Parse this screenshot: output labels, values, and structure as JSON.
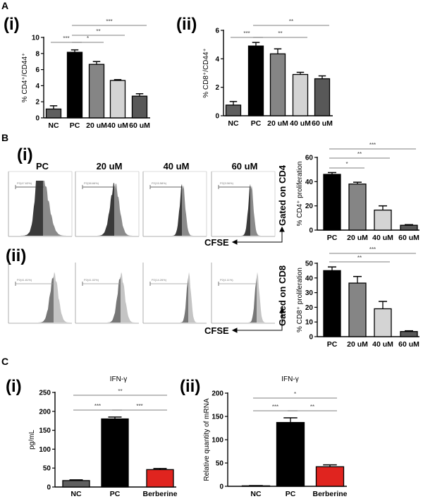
{
  "panels": {
    "A": "A",
    "B": "B",
    "C": "C",
    "i": "(i)",
    "ii": "(ii)"
  },
  "flow": {
    "headers": [
      "PC",
      "20 uM",
      "40 uM",
      "60 uM"
    ],
    "row_i_label": "Gated on CD4",
    "row_ii_label": "Gated on CD8",
    "x_axis_label": "CFSE",
    "gate_labels_row_i": [
      "P2(47.63%)",
      "P2(38.66%)",
      "P2(15.58%)",
      "P2(3.56%)"
    ],
    "gate_labels_row_ii": [
      "P2(41.81%)",
      "P2(41.02%)",
      "P2(14.26%)",
      "P2(4.11%)"
    ]
  },
  "colors": {
    "NC": "#5f5f5f",
    "PC": "#000000",
    "20 uM": "#858585",
    "40 uM": "#d4d4d4",
    "60 uM": "#585858",
    "Berberine": "#e0241f"
  },
  "chart_data": [
    {
      "id": "A_i",
      "type": "bar",
      "title": "",
      "ylabel": "% CD4⁺/CD44⁺",
      "xlabel": "",
      "categories": [
        "NC",
        "PC",
        "20 uM",
        "40 uM",
        "60 uM"
      ],
      "values": [
        1.1,
        8.15,
        6.65,
        4.65,
        2.7
      ],
      "errors": [
        0.4,
        0.3,
        0.35,
        0.1,
        0.3
      ],
      "ylim": [
        0,
        10
      ],
      "yticks": [
        0,
        2,
        4,
        6,
        8,
        10
      ],
      "significance": [
        {
          "from": "NC",
          "to": "PC",
          "label": "***"
        },
        {
          "from": "PC",
          "to": "20 uM",
          "label": "*"
        },
        {
          "from": "PC",
          "to": "40 uM",
          "label": "**"
        },
        {
          "from": "PC",
          "to": "60 uM",
          "label": "***"
        }
      ]
    },
    {
      "id": "A_ii",
      "type": "bar",
      "title": "",
      "ylabel": "% CD8⁺/CD44⁺",
      "xlabel": "",
      "categories": [
        "NC",
        "PC",
        "20 uM",
        "40 uM",
        "60 uM"
      ],
      "values": [
        0.75,
        4.9,
        4.35,
        2.9,
        2.6
      ],
      "errors": [
        0.25,
        0.25,
        0.35,
        0.15,
        0.2
      ],
      "ylim": [
        0,
        6
      ],
      "yticks": [
        0,
        2,
        4,
        6
      ],
      "significance": [
        {
          "from": "NC",
          "to": "PC",
          "label": "***"
        },
        {
          "from": "PC",
          "to": "40 uM",
          "label": "**"
        },
        {
          "from": "PC",
          "to": "60 uM",
          "label": "**"
        }
      ]
    },
    {
      "id": "B_i",
      "type": "bar",
      "title": "",
      "ylabel": "% CD4⁺ proliferation",
      "xlabel": "",
      "categories": [
        "PC",
        "20 uM",
        "40 uM",
        "60 uM"
      ],
      "values": [
        46,
        38,
        16.5,
        4
      ],
      "errors": [
        1.5,
        1.5,
        3.5,
        0.5
      ],
      "ylim": [
        0,
        60
      ],
      "yticks": [
        0,
        20,
        40,
        60
      ],
      "significance": [
        {
          "from": "PC",
          "to": "20 uM",
          "label": "*"
        },
        {
          "from": "PC",
          "to": "40 uM",
          "label": "**"
        },
        {
          "from": "PC",
          "to": "60 uM",
          "label": "***"
        }
      ]
    },
    {
      "id": "B_ii",
      "type": "bar",
      "title": "",
      "ylabel": "% CD8⁺ proliferation",
      "xlabel": "",
      "categories": [
        "PC",
        "20 uM",
        "40 uM",
        "60 uM"
      ],
      "values": [
        45,
        36.5,
        19,
        3.5
      ],
      "errors": [
        2.5,
        4.5,
        5,
        0.5
      ],
      "ylim": [
        0,
        50
      ],
      "yticks": [
        0,
        10,
        20,
        30,
        40,
        50
      ],
      "significance": [
        {
          "from": "PC",
          "to": "40 uM",
          "label": "**"
        },
        {
          "from": "PC",
          "to": "60 uM",
          "label": "***"
        }
      ]
    },
    {
      "id": "C_i",
      "type": "bar",
      "title": "IFN-γ",
      "ylabel": "pg/mL",
      "xlabel": "",
      "categories": [
        "NC",
        "PC",
        "Berberine"
      ],
      "values": [
        17,
        180,
        46
      ],
      "errors": [
        2,
        5,
        3
      ],
      "ylim": [
        0,
        250
      ],
      "yticks": [
        0,
        50,
        100,
        150,
        200,
        250
      ],
      "significance": [
        {
          "from": "NC",
          "to": "PC",
          "label": "***"
        },
        {
          "from": "PC",
          "to": "Berberine",
          "label": "***"
        },
        {
          "from": "NC",
          "to": "Berberine",
          "label": "**"
        }
      ]
    },
    {
      "id": "C_ii",
      "type": "bar",
      "title": "IFN-γ",
      "ylabel": "Relative quantity of mRNA",
      "xlabel": "",
      "categories": [
        "NC",
        "PC",
        "Berberine"
      ],
      "values": [
        1,
        137,
        42
      ],
      "errors": [
        0.5,
        10,
        4
      ],
      "ylim": [
        0,
        200
      ],
      "yticks": [
        0,
        50,
        100,
        150,
        200
      ],
      "significance": [
        {
          "from": "NC",
          "to": "PC",
          "label": "***"
        },
        {
          "from": "PC",
          "to": "Berberine",
          "label": "**"
        },
        {
          "from": "NC",
          "to": "Berberine",
          "label": "*"
        }
      ]
    }
  ]
}
